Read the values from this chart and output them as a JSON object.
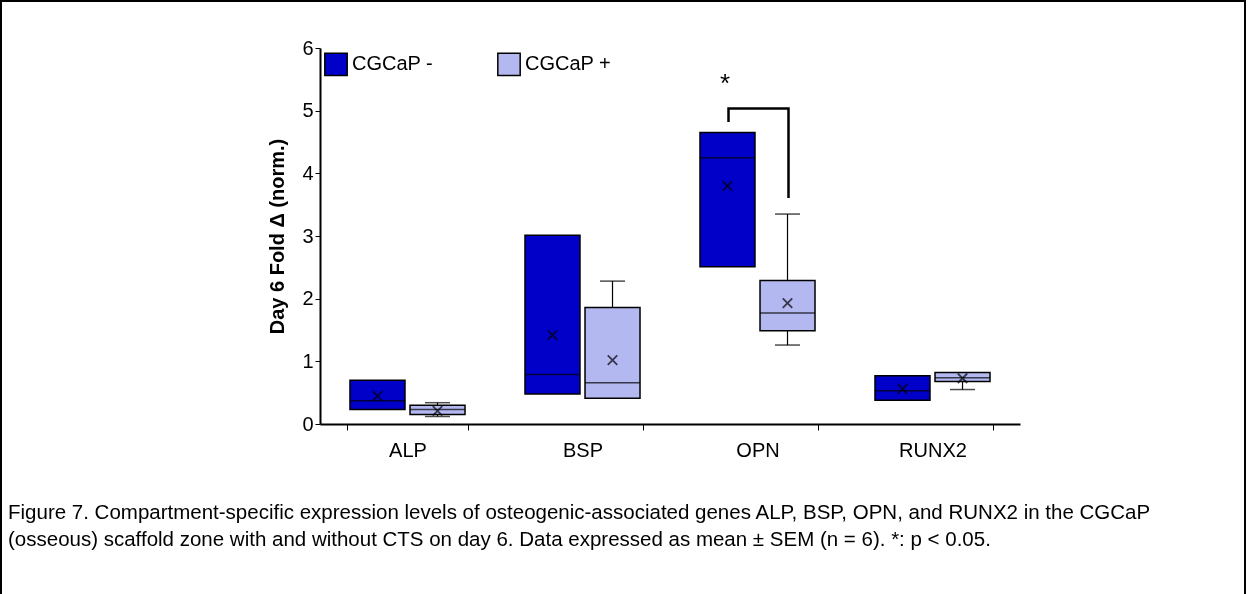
{
  "chart_data": {
    "type": "box",
    "ylabel": "Day 6 Fold Δ (norm.)",
    "categories": [
      "ALP",
      "BSP",
      "OPN",
      "RUNX2"
    ],
    "ylim": [
      0,
      6
    ],
    "yticks": [
      0,
      1,
      2,
      3,
      4,
      5,
      6
    ],
    "legend": "top left",
    "series": [
      {
        "name": "CGCaP -",
        "color": "#0000c8",
        "boxes": [
          {
            "low": 0.23,
            "q1": 0.23,
            "median": 0.37,
            "q3": 0.7,
            "high": 0.7,
            "mean": 0.45
          },
          {
            "low": 0.48,
            "q1": 0.48,
            "median": 0.79,
            "q3": 3.01,
            "high": 3.01,
            "mean": 1.42
          },
          {
            "low": 2.51,
            "q1": 2.51,
            "median": 4.25,
            "q3": 4.65,
            "high": 4.65,
            "mean": 3.8
          },
          {
            "low": 0.38,
            "q1": 0.38,
            "median": 0.53,
            "q3": 0.77,
            "high": 0.77,
            "mean": 0.56
          }
        ]
      },
      {
        "name": "CGCaP +",
        "color": "#b4b8f0",
        "boxes": [
          {
            "low": 0.12,
            "q1": 0.15,
            "median": 0.23,
            "q3": 0.3,
            "high": 0.34,
            "mean": 0.21
          },
          {
            "low": 0.41,
            "q1": 0.41,
            "median": 0.66,
            "q3": 1.86,
            "high": 2.28,
            "mean": 1.02
          },
          {
            "low": 1.26,
            "q1": 1.49,
            "median": 1.77,
            "q3": 2.29,
            "high": 3.35,
            "mean": 1.93
          },
          {
            "low": 0.55,
            "q1": 0.68,
            "median": 0.74,
            "q3": 0.82,
            "high": 0.82,
            "mean": 0.73
          }
        ]
      }
    ],
    "annotations": [
      "*",
      "Figure 7. Compartment-specific expression levels of osteogenic-associated genes ALP, BSP, OPN, and RUNX2 in the CGCaP (osseous) scaffold zone with and without CTS on day 6. Data expressed as mean ± SEM (n = 6). *: p < 0.05."
    ]
  }
}
